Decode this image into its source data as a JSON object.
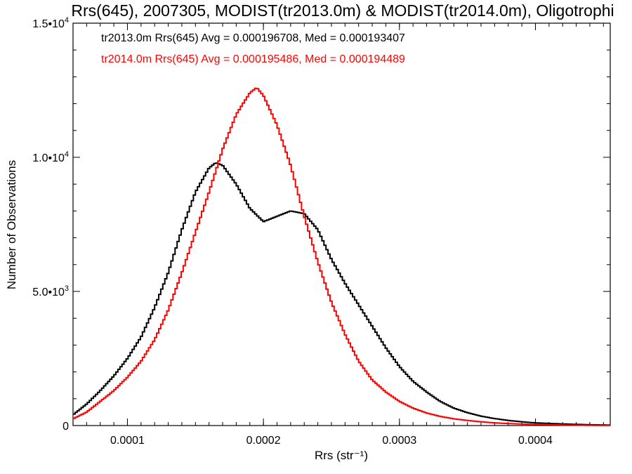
{
  "chart_data": {
    "type": "line",
    "title": "Rrs(645), 2007305, MODIST(tr2013.0m) & MODIST(tr2014.0m), Oligotrophi",
    "xlabel": "Rrs (str⁻¹)",
    "ylabel": "Number of Observations",
    "xlim": [
      6e-05,
      0.000455
    ],
    "ylim": [
      0,
      15000
    ],
    "x_ticks": [
      {
        "value": 0.0001,
        "label": "0.0001"
      },
      {
        "value": 0.0002,
        "label": "0.0002"
      },
      {
        "value": 0.0003,
        "label": "0.0003"
      },
      {
        "value": 0.0004,
        "label": "0.0004"
      }
    ],
    "y_ticks": [
      {
        "value": 0,
        "label": "0"
      },
      {
        "value": 5000,
        "label": "5.0•10",
        "sup": "3"
      },
      {
        "value": 10000,
        "label": "1.0•10",
        "sup": "4"
      },
      {
        "value": 15000,
        "label": "1.5•10",
        "sup": "4"
      }
    ],
    "grid": false,
    "annotations": [
      {
        "text": "tr2013.0m Rrs(645) Avg = 0.000196708, Med = 0.000193407",
        "color": "#000000"
      },
      {
        "text": "tr2014.0m Rrs(645) Avg = 0.000195486, Med = 0.000194489",
        "color": "#ff0000"
      }
    ],
    "series": [
      {
        "color": "#000000",
        "x": [
          6e-05,
          7e-05,
          8e-05,
          9e-05,
          0.0001,
          0.00011,
          0.00012,
          0.00013,
          0.00014,
          0.00015,
          0.00016,
          0.000165,
          0.00017,
          0.00018,
          0.00019,
          0.0002,
          0.00021,
          0.00022,
          0.00023,
          0.00024,
          0.00025,
          0.00026,
          0.00027,
          0.00028,
          0.00029,
          0.0003,
          0.00031,
          0.00032,
          0.00033,
          0.00034,
          0.00035,
          0.00036,
          0.00037,
          0.00038,
          0.00039,
          0.0004,
          0.00041,
          0.00042,
          0.00043,
          0.00044,
          0.000455
        ],
        "y": [
          400,
          800,
          1300,
          1850,
          2500,
          3300,
          4400,
          5700,
          7300,
          8700,
          9600,
          9800,
          9700,
          9000,
          8100,
          7600,
          7800,
          8000,
          7900,
          7300,
          6200,
          5300,
          4500,
          3700,
          2900,
          2200,
          1650,
          1250,
          900,
          650,
          480,
          350,
          260,
          190,
          140,
          100,
          80,
          60,
          45,
          30,
          20
        ]
      },
      {
        "color": "#ff0000",
        "x": [
          6e-05,
          7e-05,
          8e-05,
          9e-05,
          0.0001,
          0.00011,
          0.00012,
          0.00013,
          0.00014,
          0.00015,
          0.00016,
          0.00017,
          0.00018,
          0.00019,
          0.000195,
          0.0002,
          0.00021,
          0.00022,
          0.00023,
          0.00024,
          0.00025,
          0.00026,
          0.00027,
          0.00028,
          0.00029,
          0.0003,
          0.00031,
          0.00032,
          0.00033,
          0.00034,
          0.00035,
          0.00036,
          0.00037,
          0.00038,
          0.00039,
          0.0004,
          0.00041,
          0.00042,
          0.00043,
          0.00044,
          0.000455
        ],
        "y": [
          250,
          500,
          900,
          1300,
          1800,
          2400,
          3200,
          4300,
          5700,
          7200,
          8700,
          10300,
          11600,
          12400,
          12600,
          12300,
          11200,
          9700,
          7800,
          6100,
          4600,
          3400,
          2400,
          1700,
          1250,
          900,
          650,
          470,
          340,
          250,
          190,
          140,
          100,
          75,
          55,
          40,
          30,
          22,
          15,
          10,
          6
        ]
      }
    ]
  }
}
